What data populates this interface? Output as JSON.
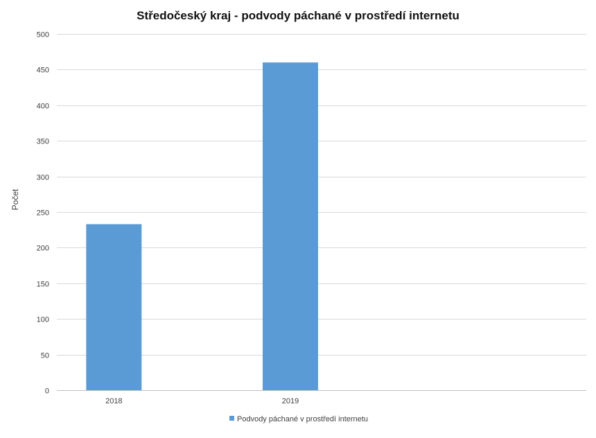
{
  "chart_data": {
    "type": "bar",
    "title": "Středočeský kraj - podvody páchané v prostředí internetu",
    "xlabel": "",
    "ylabel": "Počet",
    "categories": [
      "2018",
      "2019"
    ],
    "series": [
      {
        "name": "Podvody páchané v prostředí internetu",
        "values": [
          233,
          460
        ]
      }
    ],
    "ylim": [
      0,
      500
    ],
    "yticks": [
      0,
      50,
      100,
      150,
      200,
      250,
      300,
      350,
      400,
      450,
      500
    ],
    "grid": true,
    "legend": "bottom",
    "colors": {
      "bar": "#5b9bd5"
    }
  }
}
